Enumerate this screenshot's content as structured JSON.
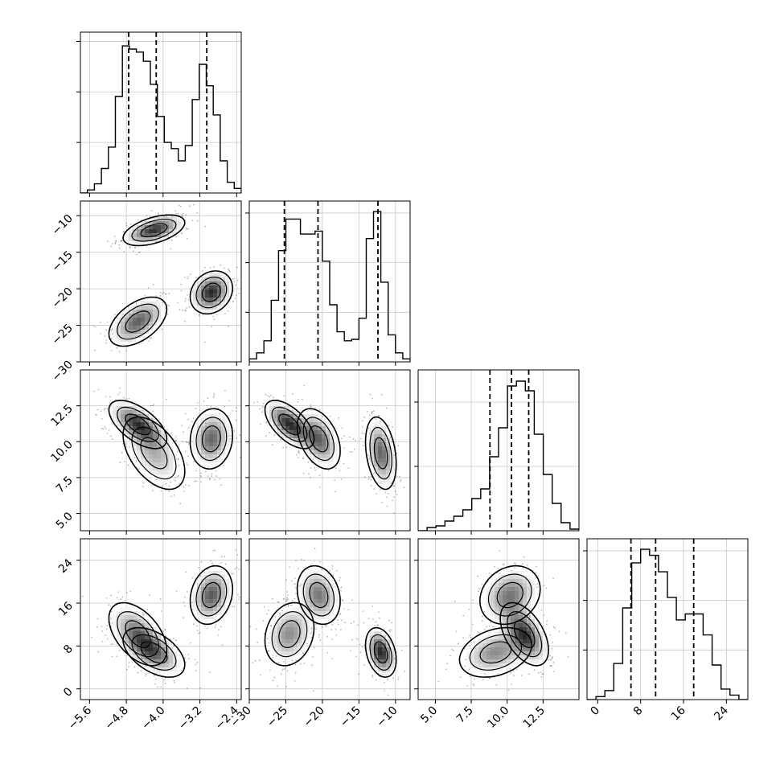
{
  "figure": {
    "type": "corner-plot",
    "n_params": 4
  },
  "chart_data": {
    "type": "corner",
    "params": [
      {
        "index": 0,
        "range": [
          -5.8,
          -2.3
        ],
        "ticks": [
          -5.6,
          -4.8,
          -4.0,
          -3.2,
          -2.4
        ],
        "tick_labels": [
          "−5.6",
          "−4.8",
          "−4.0",
          "−3.2",
          "−2.4"
        ],
        "quantiles": [
          -4.75,
          -4.15,
          -3.05
        ],
        "hist": [
          0.0,
          0.02,
          0.06,
          0.16,
          0.3,
          0.63,
          0.96,
          0.94,
          0.92,
          0.86,
          0.71,
          0.5,
          0.33,
          0.29,
          0.21,
          0.31,
          0.61,
          0.84,
          0.7,
          0.51,
          0.21,
          0.07,
          0.03
        ],
        "hist_ymax": 1.05,
        "hist_yticks": [
          0.33,
          0.66,
          0.99
        ]
      },
      {
        "index": 1,
        "range": [
          -30,
          -8
        ],
        "ticks": [
          -30,
          -25,
          -20,
          -15,
          -10
        ],
        "tick_labels": [
          "−30",
          "−25",
          "−20",
          "−15",
          "−10"
        ],
        "quantiles": [
          -25.2,
          -20.6,
          -12.4
        ],
        "hist": [
          0.02,
          0.06,
          0.14,
          0.41,
          0.74,
          0.95,
          0.95,
          0.85,
          0.85,
          0.87,
          0.67,
          0.38,
          0.2,
          0.14,
          0.15,
          0.29,
          0.82,
          1.0,
          0.53,
          0.18,
          0.06,
          0.02
        ],
        "hist_ymax": 1.07,
        "hist_yticks": [
          0.33,
          0.66,
          0.99
        ]
      },
      {
        "index": 2,
        "range": [
          3.8,
          15.0
        ],
        "ticks": [
          5.0,
          7.5,
          10.0,
          12.5
        ],
        "tick_labels": [
          "5.0",
          "7.5",
          "10.0",
          "12.5"
        ],
        "quantiles": [
          8.8,
          10.3,
          11.5
        ],
        "hist": [
          0.0,
          0.02,
          0.03,
          0.06,
          0.09,
          0.13,
          0.2,
          0.26,
          0.46,
          0.64,
          0.9,
          0.93,
          0.87,
          0.6,
          0.35,
          0.17,
          0.05,
          0.01
        ],
        "hist_ymax": 1.0,
        "hist_yticks": [
          0.4,
          0.8
        ]
      },
      {
        "index": 3,
        "range": [
          -2,
          28
        ],
        "ticks": [
          0,
          8,
          16,
          24
        ],
        "tick_labels": [
          "0",
          "8",
          "16",
          "24"
        ],
        "quantiles": [
          6.2,
          10.8,
          17.9
        ],
        "hist": [
          0.0,
          0.02,
          0.06,
          0.24,
          0.61,
          0.91,
          1.0,
          0.96,
          0.85,
          0.68,
          0.53,
          0.57,
          0.57,
          0.43,
          0.23,
          0.07,
          0.03,
          0.0
        ],
        "hist_ymax": 1.07,
        "hist_yticks": [
          0.33,
          0.66,
          0.99
        ]
      }
    ],
    "grid": true,
    "modes": [
      {
        "mean": [
          -4.55,
          -24.5,
          11.2,
          10.2
        ],
        "sd": [
          0.3,
          1.6,
          0.8,
          2.8
        ],
        "corr": {
          "0-1": 0.5,
          "0-2": -0.6,
          "0-3": -0.5,
          "1-2": -0.6,
          "1-3": 0.2,
          "2-3": -0.5
        },
        "weight": 0.36
      },
      {
        "mean": [
          -4.2,
          -12.0,
          9.2,
          6.8
        ],
        "sd": [
          0.32,
          1.0,
          1.2,
          2.2
        ],
        "corr": {
          "0-1": 0.5,
          "0-2": -0.5,
          "0-3": -0.5,
          "1-2": -0.3,
          "1-3": -0.3,
          "2-3": 0.3
        },
        "weight": 0.3
      },
      {
        "mean": [
          -2.95,
          -20.5,
          10.2,
          17.5
        ],
        "sd": [
          0.22,
          1.4,
          1.0,
          2.6
        ],
        "corr": {
          "0-1": 0.2,
          "0-2": 0.1,
          "0-3": 0.2,
          "1-2": -0.4,
          "1-3": -0.2,
          "2-3": 0.2
        },
        "weight": 0.34
      }
    ]
  }
}
